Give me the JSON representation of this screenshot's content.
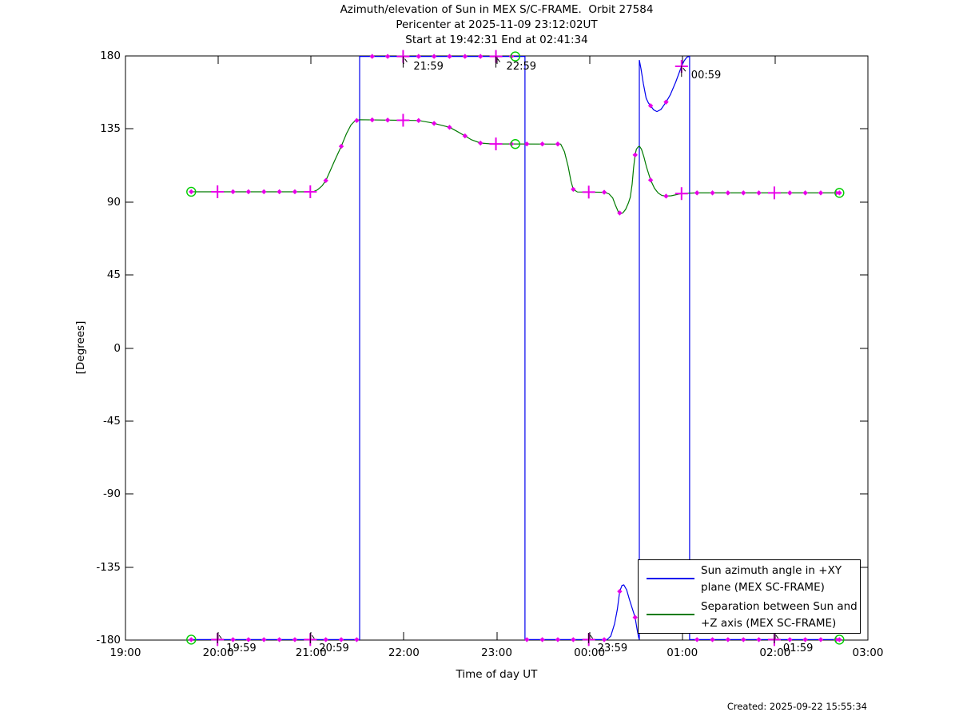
{
  "header": {
    "title1": "Azimuth/elevation of Sun in MEX S/C-FRAME.  Orbit 27584",
    "title2": "Pericenter at 2025-11-09 23:12:02UT",
    "title3": "Start at 19:42:31 End at 02:41:34"
  },
  "footer": {
    "created": "Created: 2025-09-22 15:55:34"
  },
  "legend": {
    "entries": [
      {
        "line1": "Sun azimuth angle in +XY",
        "line2": "plane (MEX SC-FRAME)",
        "color": "#0000EE"
      },
      {
        "line1": "Separation between Sun and",
        "line2": "+Z axis (MEX SC-FRAME)",
        "color": "#007B00"
      }
    ]
  },
  "chart_data": {
    "type": "line",
    "title": "Azimuth/elevation of Sun in MEX S/C-FRAME.  Orbit 27584",
    "subtitle1": "Pericenter at 2025-11-09 23:12:02UT",
    "subtitle2": "Start at 19:42:31 End at 02:41:34",
    "xlabel": "Time of day UT",
    "ylabel": "[Degrees]",
    "x_axis": {
      "note": "t = hours after 19:00 UT",
      "range": [
        0,
        8
      ],
      "ticks": [
        {
          "t": 0,
          "label": "19:00"
        },
        {
          "t": 1,
          "label": "20:00"
        },
        {
          "t": 2,
          "label": "21:00"
        },
        {
          "t": 3,
          "label": "22:00"
        },
        {
          "t": 4,
          "label": "23:00"
        },
        {
          "t": 5,
          "label": "00:00"
        },
        {
          "t": 6,
          "label": "01:00"
        },
        {
          "t": 7,
          "label": "02:00"
        },
        {
          "t": 8,
          "label": "03:00"
        }
      ]
    },
    "y_axis": {
      "range": [
        -180,
        180
      ],
      "ticks": [
        {
          "v": 180,
          "label": "180"
        },
        {
          "v": 135,
          "label": "135"
        },
        {
          "v": 90,
          "label": "90"
        },
        {
          "v": 45,
          "label": "45"
        },
        {
          "v": 0,
          "label": "0"
        },
        {
          "v": -45,
          "label": "-45"
        },
        {
          "v": -90,
          "label": "-90"
        },
        {
          "v": -135,
          "label": "-135"
        },
        {
          "v": -180,
          "label": "-180"
        }
      ]
    },
    "series": [
      {
        "name": "Sun azimuth angle in +XY plane (MEX SC-FRAME)",
        "color": "#0000EE",
        "points": [
          [
            0.7086,
            -179.7
          ],
          [
            2.523,
            -179.7
          ],
          [
            2.523,
            179.7
          ],
          [
            4.305,
            179.7
          ],
          [
            4.305,
            -179.7
          ],
          [
            5.19,
            -179.7
          ],
          [
            5.23,
            -177.5
          ],
          [
            5.27,
            -170
          ],
          [
            5.3,
            -161
          ],
          [
            5.3253,
            -150
          ],
          [
            5.35,
            -146.3
          ],
          [
            5.37,
            -146
          ],
          [
            5.4,
            -149
          ],
          [
            5.43,
            -155
          ],
          [
            5.4919,
            -166
          ],
          [
            5.515,
            -174
          ],
          [
            5.53,
            -178.5
          ],
          [
            5.537,
            -179.7
          ],
          [
            5.537,
            177.5
          ],
          [
            5.555,
            172
          ],
          [
            5.58,
            163
          ],
          [
            5.61,
            154
          ],
          [
            5.635,
            151
          ],
          [
            5.6586,
            149.3
          ],
          [
            5.69,
            146.8
          ],
          [
            5.727,
            145.7
          ],
          [
            5.77,
            147
          ],
          [
            5.8253,
            151.6
          ],
          [
            5.87,
            156
          ],
          [
            5.93,
            164
          ],
          [
            5.9919,
            173.6
          ],
          [
            6.02,
            177
          ],
          [
            6.05,
            179.3
          ],
          [
            6.079,
            179.7
          ],
          [
            6.079,
            -179.7
          ],
          [
            7.6928,
            -179.7
          ]
        ]
      },
      {
        "name": "Separation between Sun and +Z axis (MEX SC-FRAME)",
        "color": "#007B00",
        "points": [
          [
            0.7086,
            96.3
          ],
          [
            2.02,
            96.3
          ],
          [
            2.07,
            97.5
          ],
          [
            2.12,
            100
          ],
          [
            2.1586,
            103.2
          ],
          [
            2.2,
            108.5
          ],
          [
            2.25,
            115
          ],
          [
            2.3253,
            124.3
          ],
          [
            2.38,
            132
          ],
          [
            2.43,
            137.5
          ],
          [
            2.47,
            139.8
          ],
          [
            2.52,
            140.7
          ],
          [
            3.16,
            140.2
          ],
          [
            3.3,
            138.8
          ],
          [
            3.4919,
            136
          ],
          [
            3.57,
            133.6
          ],
          [
            3.6586,
            130.7
          ],
          [
            3.73,
            128.3
          ],
          [
            3.8253,
            126.3
          ],
          [
            3.95,
            125.8
          ],
          [
            4.69,
            125.7
          ],
          [
            4.73,
            121
          ],
          [
            4.77,
            112
          ],
          [
            4.8,
            103
          ],
          [
            4.8253,
            97.8
          ],
          [
            4.87,
            96.2
          ],
          [
            5.1586,
            96
          ],
          [
            5.21,
            95
          ],
          [
            5.25,
            92.5
          ],
          [
            5.28,
            88
          ],
          [
            5.31,
            84
          ],
          [
            5.335,
            82.7
          ],
          [
            5.36,
            83.3
          ],
          [
            5.39,
            85.5
          ],
          [
            5.42,
            89.5
          ],
          [
            5.44,
            93
          ],
          [
            5.46,
            101
          ],
          [
            5.475,
            111
          ],
          [
            5.4919,
            119
          ],
          [
            5.505,
            122.5
          ],
          [
            5.525,
            124
          ],
          [
            5.54,
            124.3
          ],
          [
            5.56,
            122.5
          ],
          [
            5.585,
            118
          ],
          [
            5.615,
            111.5
          ],
          [
            5.6586,
            103.5
          ],
          [
            5.7,
            98.5
          ],
          [
            5.74,
            95.5
          ],
          [
            5.78,
            94
          ],
          [
            5.8253,
            93.6
          ],
          [
            5.88,
            93.8
          ],
          [
            5.9919,
            95.2
          ],
          [
            6.15,
            95.6
          ],
          [
            7.6928,
            95.6
          ]
        ]
      }
    ],
    "marker_color": "#E800E8",
    "marker_times_small": [
      0.7086,
      1.1586,
      1.3253,
      1.4919,
      1.6586,
      1.8253,
      2.1586,
      2.3253,
      2.4919,
      2.6586,
      2.8253,
      3.1586,
      3.3253,
      3.4919,
      3.6586,
      3.8253,
      4.1586,
      4.3253,
      4.4919,
      4.6586,
      4.8253,
      5.1586,
      5.3253,
      5.4919,
      5.6586,
      5.8253,
      6.1586,
      6.3253,
      6.4919,
      6.6586,
      6.8253,
      7.1586,
      7.3253,
      7.4919,
      7.6586,
      7.6928
    ],
    "marker_times_big": [
      0.9919,
      1.9919,
      2.9919,
      3.9919,
      4.9919,
      5.9919,
      6.9919
    ],
    "circle_color": "#00CC00",
    "endpoint_circles": [
      [
        0.7086,
        96.3
      ],
      [
        0.7086,
        -179.7
      ],
      [
        4.2006,
        179.7
      ],
      [
        4.2006,
        125.7
      ],
      [
        7.6928,
        95.6
      ],
      [
        7.6928,
        -179.7
      ]
    ],
    "annotations": [
      {
        "label": "19:59",
        "t": 0.9919,
        "pos": "bottom"
      },
      {
        "label": "20:59",
        "t": 1.9919,
        "pos": "bottom"
      },
      {
        "label": "21:59",
        "t": 2.9919,
        "pos": "top"
      },
      {
        "label": "22:59",
        "t": 3.9919,
        "pos": "top"
      },
      {
        "label": "23:59",
        "t": 4.9919,
        "pos": "bottom"
      },
      {
        "label": "00:59",
        "t": 5.9919,
        "pos": "float",
        "v": 174
      },
      {
        "label": "01:59",
        "t": 6.9919,
        "pos": "bottom"
      }
    ],
    "legend_position": "bottom-right-inside",
    "grid": false
  }
}
